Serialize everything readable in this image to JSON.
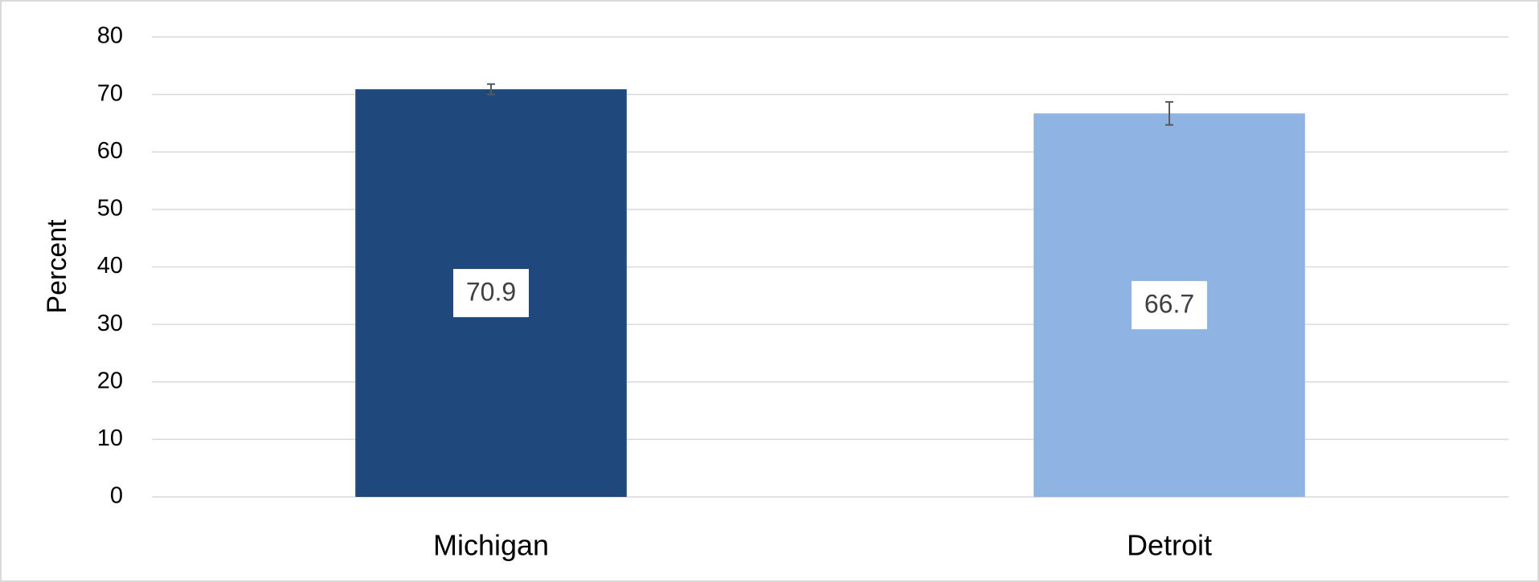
{
  "chart_data": {
    "type": "bar",
    "y_label": "Percent",
    "categories": [
      "Michigan",
      "Detroit"
    ],
    "values": [
      70.9,
      66.7
    ],
    "errors": [
      0.9,
      2.0
    ],
    "colors": [
      "#1f497d",
      "#8eb4e3"
    ],
    "ylim": [
      0,
      80
    ],
    "yticks": [
      0,
      10,
      20,
      30,
      40,
      50,
      60,
      70,
      80
    ],
    "grid": true
  }
}
